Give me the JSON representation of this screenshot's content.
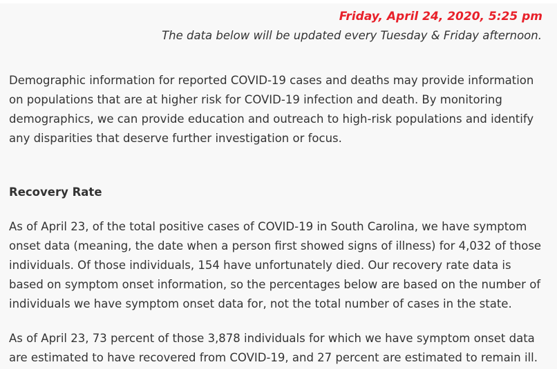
{
  "header": {
    "date": "Friday, April 24, 2020, 5:25 pm",
    "update_note": "The data below will be updated every Tuesday & Friday afternoon."
  },
  "content": {
    "intro": "Demographic information for reported COVID-19 cases and deaths may provide information on populations that are at higher risk for COVID-19 infection and death. By monitoring demographics, we can provide education and outreach to high-risk populations and identify any disparities that deserve further investigation or focus.",
    "recovery_heading": "Recovery Rate",
    "onset_paragraph": "As of April 23, of the total positive cases of COVID-19 in South Carolina, we have symptom onset data (meaning, the date when a person first showed signs of illness) for 4,032 of those individuals. Of those individuals, 154 have unfortunately died. Our recovery rate data is based on symptom onset information, so the percentages below are based on the number of individuals we have symptom onset data for, not the total number of cases in the state.",
    "recovery_paragraph": "As of April 23, 73 percent of those 3,878 individuals for which we have symptom onset data are estimated to have recovered from COVID-19, and 27 percent are estimated to remain ill."
  },
  "colors": {
    "accent_red": "#e8202a",
    "text": "#333333",
    "panel_bg": "#f8f8f8"
  }
}
